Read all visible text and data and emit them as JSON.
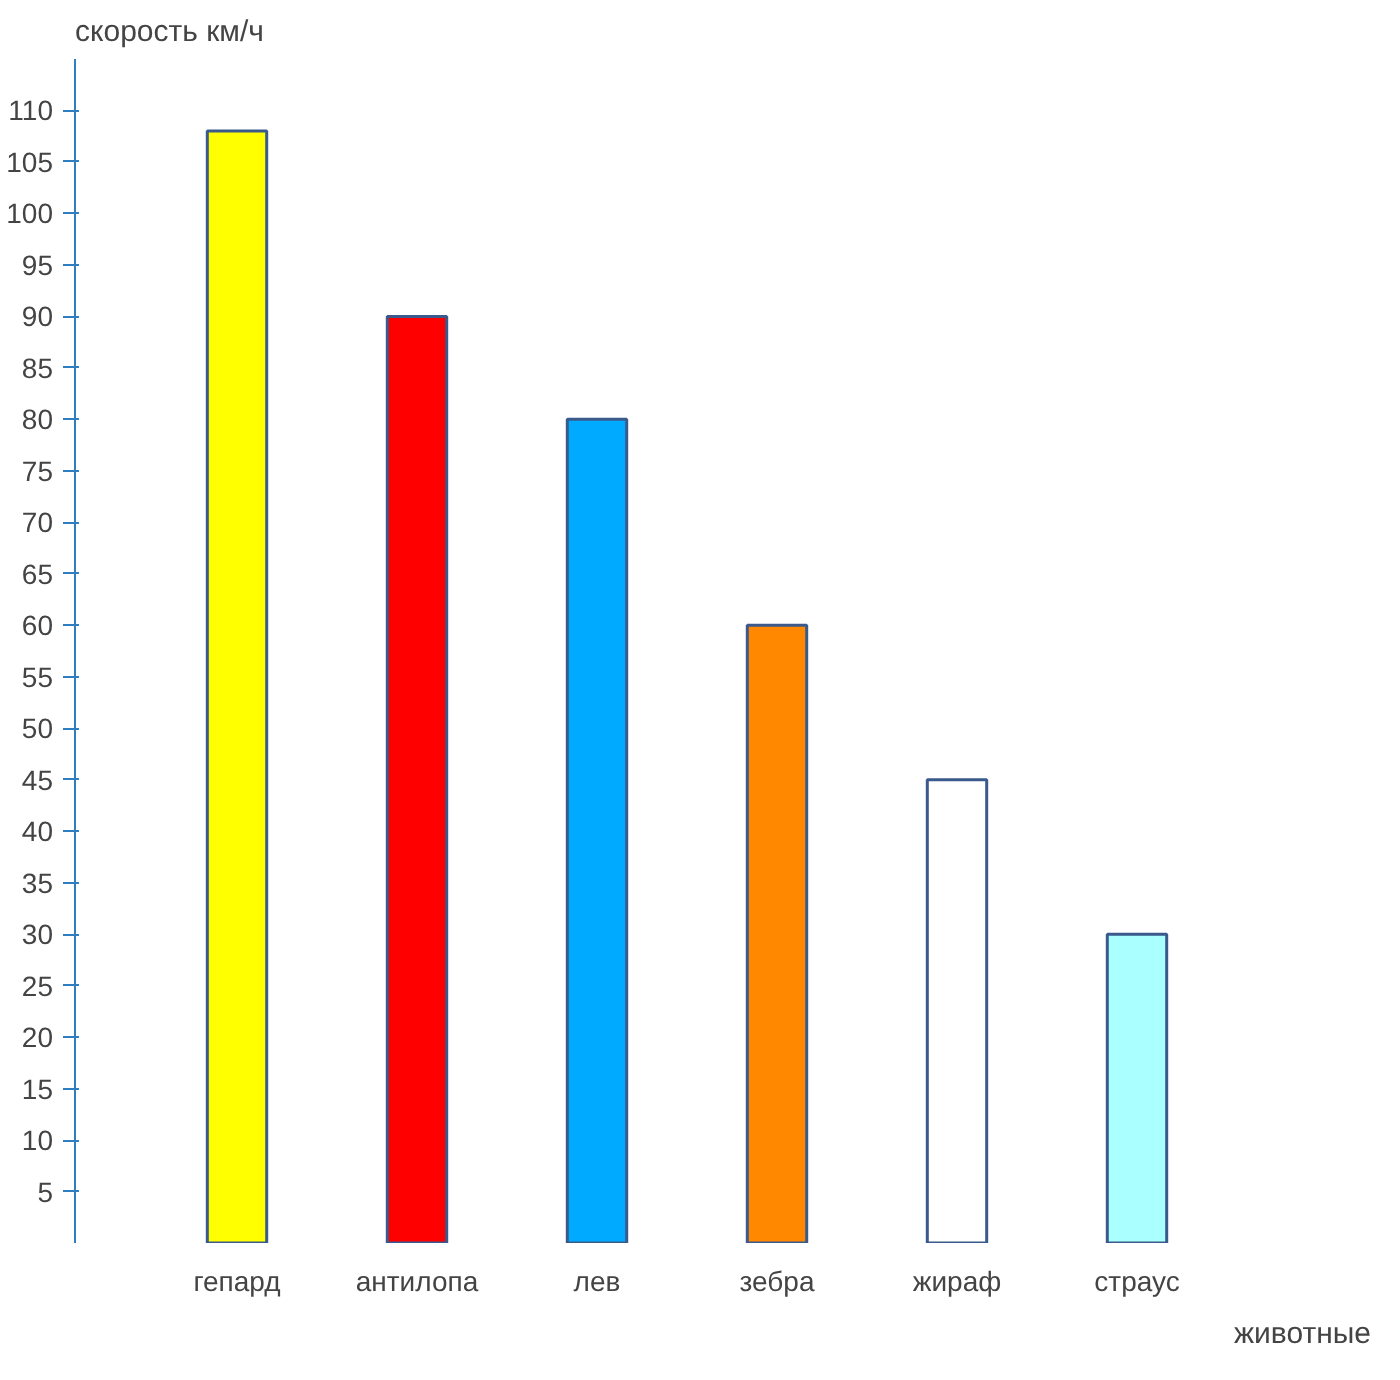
{
  "chart_data": {
    "type": "bar",
    "ylabel": "скорость км/ч",
    "xlabel": "животные",
    "categories": [
      "гепард",
      "антилопа",
      "лев",
      "зебра",
      "жираф",
      "страус"
    ],
    "values": [
      108,
      90,
      80,
      60,
      45,
      30
    ],
    "colors": [
      "#ffff00",
      "#ff0000",
      "#00aaff",
      "#ff8800",
      "#ffffff",
      "#aaffff"
    ],
    "ylim": [
      0,
      115
    ],
    "yticks": [
      5,
      10,
      15,
      20,
      25,
      30,
      35,
      40,
      45,
      50,
      55,
      60,
      65,
      70,
      75,
      80,
      85,
      90,
      95,
      100,
      105,
      110
    ],
    "grid": false
  }
}
